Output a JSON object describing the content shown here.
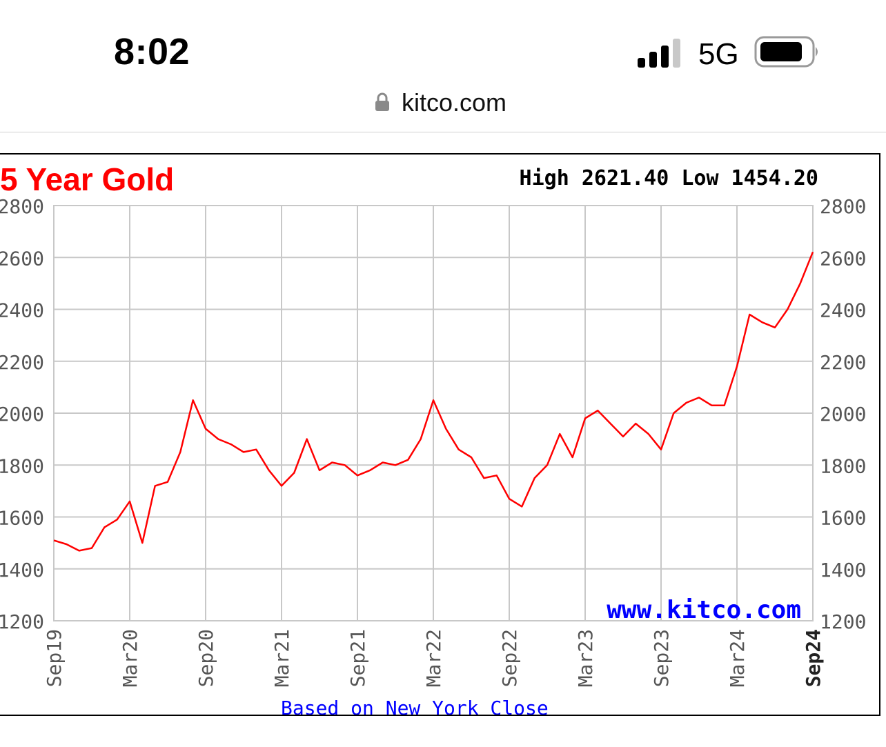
{
  "status_bar": {
    "time": "8:02",
    "network": "5G",
    "signal_icon": "cellular-signal-icon",
    "battery_icon": "battery-icon"
  },
  "browser": {
    "url": "kitco.com",
    "lock_icon": "lock-icon"
  },
  "chart_data": {
    "type": "line",
    "title": "5 Year Gold",
    "stats_text": "High 2621.40 Low 1454.20",
    "watermark": "www.kitco.com",
    "footer": "Based on New York Close",
    "x_ticks": [
      "Sep19",
      "Mar20",
      "Sep20",
      "Mar21",
      "Sep21",
      "Mar22",
      "Sep22",
      "Mar23",
      "Sep23",
      "Mar24",
      "Sep24"
    ],
    "y_ticks": [
      "1200",
      "1400",
      "1600",
      "1800",
      "2000",
      "2200",
      "2400",
      "2600",
      "2800"
    ],
    "ylim": [
      1200,
      2800
    ],
    "xlim": [
      "2019-09",
      "2024-09"
    ],
    "grid": true,
    "series": [
      {
        "color": "#ff0000",
        "x": [
          "2019-09",
          "2019-10",
          "2019-11",
          "2019-12",
          "2020-01",
          "2020-02",
          "2020-03",
          "2020-04",
          "2020-05",
          "2020-06",
          "2020-07",
          "2020-08",
          "2020-09",
          "2020-10",
          "2020-11",
          "2020-12",
          "2021-01",
          "2021-02",
          "2021-03",
          "2021-04",
          "2021-05",
          "2021-06",
          "2021-07",
          "2021-08",
          "2021-09",
          "2021-10",
          "2021-11",
          "2021-12",
          "2022-01",
          "2022-02",
          "2022-03",
          "2022-04",
          "2022-05",
          "2022-06",
          "2022-07",
          "2022-08",
          "2022-09",
          "2022-10",
          "2022-11",
          "2022-12",
          "2023-01",
          "2023-02",
          "2023-03",
          "2023-04",
          "2023-05",
          "2023-06",
          "2023-07",
          "2023-08",
          "2023-09",
          "2023-10",
          "2023-11",
          "2023-12",
          "2024-01",
          "2024-02",
          "2024-03",
          "2024-04",
          "2024-05",
          "2024-06",
          "2024-07",
          "2024-08",
          "2024-09"
        ],
        "y": [
          1510,
          1495,
          1470,
          1480,
          1560,
          1590,
          1660,
          1500,
          1720,
          1735,
          1850,
          2050,
          1940,
          1900,
          1880,
          1850,
          1860,
          1780,
          1720,
          1770,
          1900,
          1780,
          1810,
          1800,
          1760,
          1780,
          1810,
          1800,
          1820,
          1900,
          2050,
          1940,
          1860,
          1830,
          1750,
          1760,
          1670,
          1640,
          1750,
          1800,
          1920,
          1830,
          1980,
          2010,
          1960,
          1910,
          1960,
          1920,
          1860,
          2000,
          2040,
          2060,
          2030,
          2030,
          2180,
          2380,
          2350,
          2330,
          2400,
          2500,
          2621
        ]
      }
    ]
  }
}
